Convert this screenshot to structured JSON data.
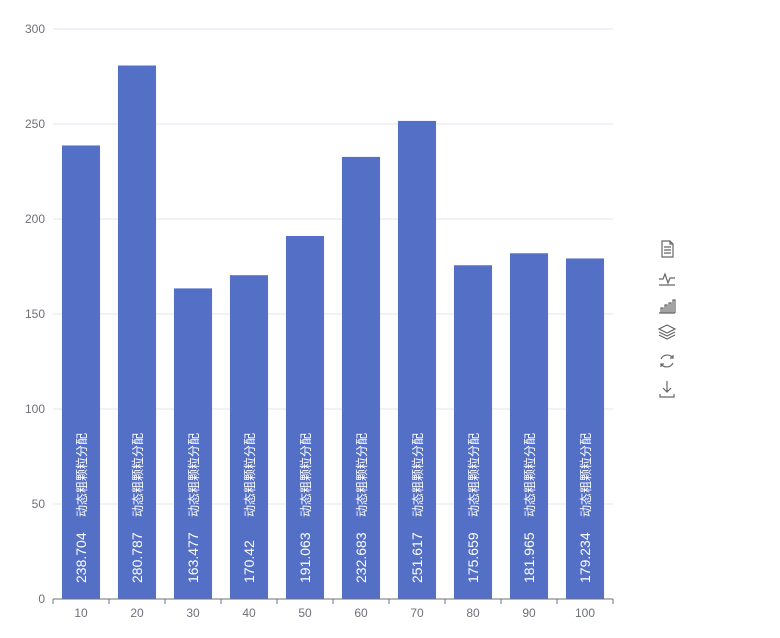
{
  "chart_data": {
    "type": "bar",
    "categories": [
      "10",
      "20",
      "30",
      "40",
      "50",
      "60",
      "70",
      "80",
      "90",
      "100"
    ],
    "series": [
      {
        "name": "动态粗颗粒分配",
        "values": [
          238.704,
          280.787,
          163.477,
          170.42,
          191.063,
          232.683,
          251.617,
          175.659,
          181.965,
          179.234
        ]
      }
    ],
    "value_labels": [
      "238.704",
      "280.787",
      "163.477",
      "170.42",
      "191.063",
      "232.683",
      "251.617",
      "175.659",
      "181.965",
      "179.234"
    ],
    "yticks": [
      "0",
      "50",
      "100",
      "150",
      "200",
      "250",
      "300"
    ],
    "ylim": [
      0,
      300
    ],
    "grid": true,
    "color": "#5470c6",
    "title": "",
    "xlabel": "",
    "ylabel": ""
  },
  "toolbox": {
    "icons": [
      "data-view-icon",
      "line-chart-icon",
      "bar-chart-icon",
      "stack-icon",
      "restore-icon",
      "download-icon"
    ]
  }
}
